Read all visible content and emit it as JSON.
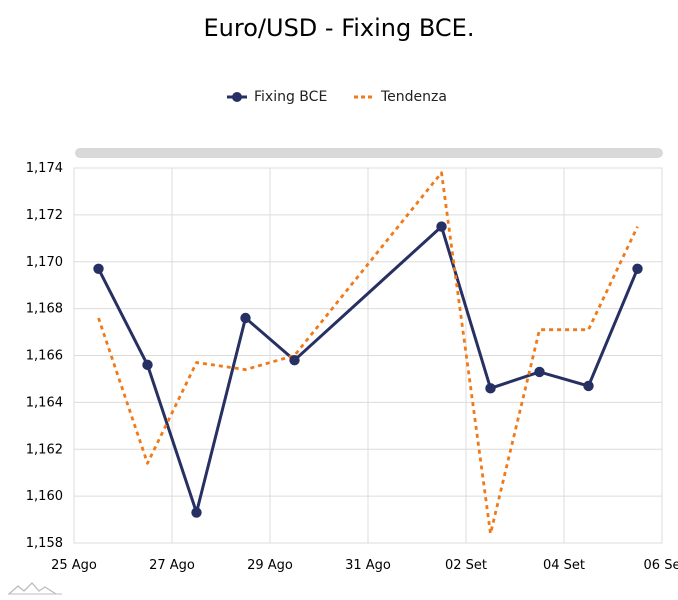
{
  "chart_data": {
    "type": "line",
    "title": "Euro/USD - Fixing BCE.",
    "legend_position": "top-center",
    "grid": true,
    "x_tick_labels": [
      "25 Ago",
      "27 Ago",
      "29 Ago",
      "31 Ago",
      "02 Set",
      "04 Set",
      "06 Se"
    ],
    "y_tick_labels": [
      "1,174",
      "1,172",
      "1,170",
      "1,168",
      "1,166",
      "1,164",
      "1,162",
      "1,160",
      "1,158"
    ],
    "ylim": [
      1.158,
      1.174
    ],
    "xlim": [
      0,
      12
    ],
    "series": [
      {
        "name": "Fixing BCE",
        "style": "solid-markers",
        "color": "#263062",
        "x": [
          0.5,
          1.5,
          2.5,
          3.5,
          4.5,
          7.5,
          8.5,
          9.5,
          10.5,
          11.5
        ],
        "values": [
          1.1697,
          1.1656,
          1.1593,
          1.1676,
          1.1658,
          1.1715,
          1.1646,
          1.1653,
          1.1647,
          1.1697
        ]
      },
      {
        "name": "Tendenza",
        "style": "dashed",
        "color": "#f07a1a",
        "x": [
          0.5,
          1.5,
          2.5,
          3.5,
          4.5,
          7.5,
          8.5,
          9.5,
          10.5,
          11.5
        ],
        "values": [
          1.1676,
          1.1614,
          1.1657,
          1.1654,
          1.166,
          1.1738,
          1.1584,
          1.1671,
          1.1671,
          1.1715
        ]
      }
    ]
  }
}
